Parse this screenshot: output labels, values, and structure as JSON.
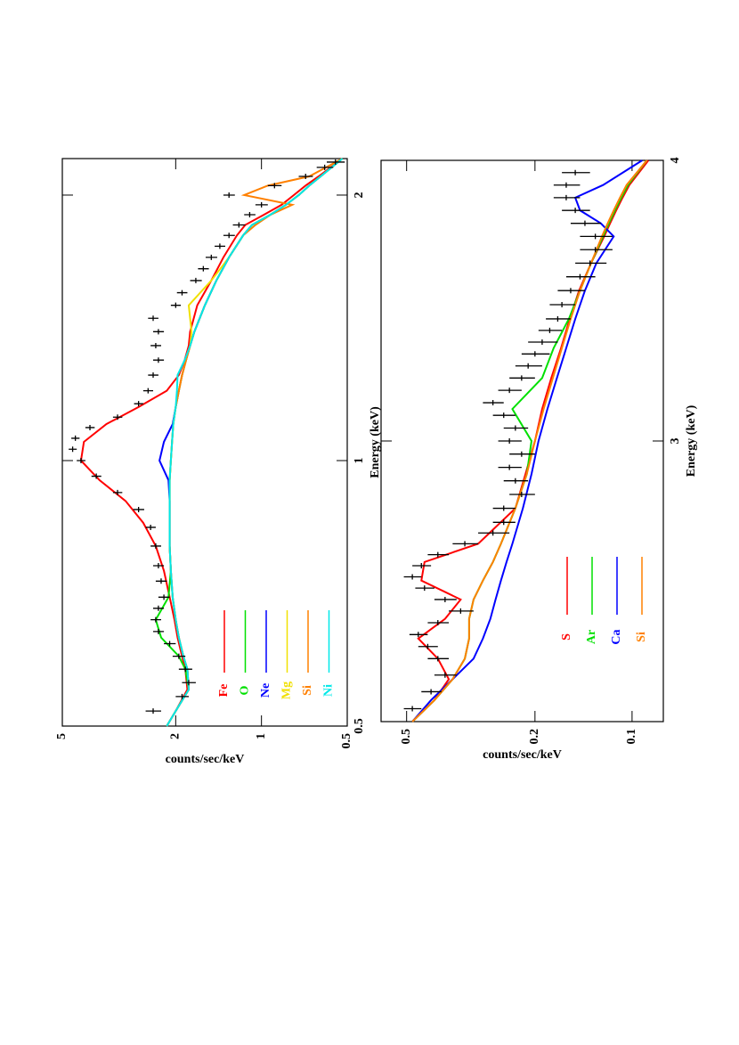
{
  "chart_data": [
    {
      "type": "line",
      "xlabel": "Energy (keV)",
      "ylabel": "counts/sec/keV",
      "xscale": "log",
      "yscale": "log",
      "xlim": [
        0.5,
        2.2
      ],
      "xticks": [
        0.5,
        1,
        2
      ],
      "ylim": [
        0.5,
        5
      ],
      "yticks": [
        0.5,
        1,
        2,
        5
      ],
      "x": [
        0.5,
        0.52,
        0.55,
        0.58,
        0.6,
        0.63,
        0.66,
        0.7,
        0.75,
        0.8,
        0.85,
        0.9,
        0.95,
        1.0,
        1.05,
        1.1,
        1.15,
        1.2,
        1.25,
        1.3,
        1.35,
        1.4,
        1.5,
        1.6,
        1.7,
        1.8,
        1.85,
        1.9,
        1.95,
        2.0,
        2.05,
        2.1,
        2.2
      ],
      "series": [
        {
          "name": "Fe",
          "color": "#ff0000",
          "values": [
            2.15,
            2.0,
            1.82,
            1.85,
            1.9,
            1.97,
            2.02,
            2.1,
            2.2,
            2.35,
            2.6,
            3.0,
            3.7,
            4.3,
            4.2,
            3.5,
            2.7,
            2.15,
            1.95,
            1.86,
            1.8,
            1.78,
            1.68,
            1.5,
            1.36,
            1.22,
            1.14,
            0.98,
            0.85,
            0.77,
            0.7,
            0.63,
            0.52
          ]
        },
        {
          "name": "O",
          "color": "#00e000",
          "values": [
            2.15,
            2.0,
            1.8,
            1.85,
            1.95,
            2.25,
            2.35,
            2.12,
            2.08,
            2.1,
            2.1,
            2.1,
            2.1,
            2.08,
            2.06,
            2.04,
            2.0,
            1.95,
            1.9,
            1.84,
            1.78,
            1.72,
            1.58,
            1.44,
            1.3,
            1.16,
            1.08,
            0.93,
            0.82,
            0.74,
            0.68,
            0.62,
            0.52
          ]
        },
        {
          "name": "Ne",
          "color": "#0000ff",
          "values": [
            2.15,
            2.0,
            1.8,
            1.82,
            1.88,
            1.95,
            2.0,
            2.05,
            2.08,
            2.1,
            2.1,
            2.1,
            2.12,
            2.28,
            2.2,
            2.05,
            2.0,
            1.95,
            1.9,
            1.84,
            1.78,
            1.72,
            1.58,
            1.44,
            1.3,
            1.16,
            1.08,
            0.93,
            0.82,
            0.74,
            0.68,
            0.62,
            0.52
          ]
        },
        {
          "name": "Mg",
          "color": "#f0e000",
          "values": [
            2.15,
            2.0,
            1.8,
            1.82,
            1.88,
            1.95,
            2.0,
            2.05,
            2.08,
            2.1,
            2.1,
            2.1,
            2.1,
            2.08,
            2.06,
            2.04,
            2.0,
            1.95,
            1.9,
            1.84,
            1.78,
            1.76,
            1.8,
            1.5,
            1.3,
            1.16,
            1.08,
            0.93,
            0.82,
            0.74,
            0.68,
            0.62,
            0.52
          ]
        },
        {
          "name": "Si",
          "color": "#ff8000",
          "values": [
            2.15,
            2.0,
            1.8,
            1.82,
            1.88,
            1.95,
            2.0,
            2.05,
            2.08,
            2.1,
            2.1,
            2.1,
            2.1,
            2.08,
            2.06,
            2.04,
            2.0,
            1.95,
            1.9,
            1.84,
            1.78,
            1.72,
            1.58,
            1.44,
            1.3,
            1.16,
            1.05,
            0.93,
            0.78,
            1.15,
            0.95,
            0.68,
            0.52
          ]
        },
        {
          "name": "Ni",
          "color": "#00e8e8",
          "values": [
            2.15,
            2.0,
            1.8,
            1.82,
            1.88,
            1.95,
            2.0,
            2.05,
            2.08,
            2.1,
            2.1,
            2.1,
            2.1,
            2.08,
            2.06,
            2.04,
            2.0,
            1.98,
            1.97,
            1.86,
            1.78,
            1.72,
            1.58,
            1.44,
            1.3,
            1.16,
            1.08,
            0.93,
            0.82,
            0.74,
            0.68,
            0.62,
            0.52
          ]
        }
      ],
      "points": {
        "color": "#000000",
        "x": [
          0.52,
          0.54,
          0.56,
          0.58,
          0.6,
          0.62,
          0.64,
          0.66,
          0.68,
          0.7,
          0.73,
          0.76,
          0.8,
          0.84,
          0.88,
          0.92,
          0.96,
          1.0,
          1.03,
          1.06,
          1.09,
          1.12,
          1.16,
          1.2,
          1.25,
          1.3,
          1.35,
          1.4,
          1.45,
          1.5,
          1.55,
          1.6,
          1.65,
          1.7,
          1.75,
          1.8,
          1.85,
          1.9,
          1.95,
          2.0,
          2.05,
          2.1,
          2.15,
          2.18
        ],
        "values": [
          2.4,
          1.9,
          1.8,
          1.85,
          1.95,
          2.1,
          2.3,
          2.35,
          2.3,
          2.2,
          2.25,
          2.3,
          2.35,
          2.45,
          2.7,
          3.2,
          3.8,
          4.3,
          4.6,
          4.5,
          4.0,
          3.2,
          2.7,
          2.5,
          2.4,
          2.3,
          2.35,
          2.3,
          2.4,
          2.0,
          1.9,
          1.7,
          1.6,
          1.5,
          1.4,
          1.3,
          1.2,
          1.1,
          1.0,
          1.3,
          0.9,
          0.7,
          0.6,
          0.55
        ],
        "yerr": [
          0.15,
          0.1,
          0.1,
          0.1,
          0.1,
          0.1,
          0.1,
          0.1,
          0.1,
          0.1,
          0.1,
          0.1,
          0.1,
          0.1,
          0.12,
          0.12,
          0.15,
          0.15,
          0.15,
          0.15,
          0.15,
          0.12,
          0.1,
          0.1,
          0.1,
          0.1,
          0.1,
          0.1,
          0.1,
          0.08,
          0.08,
          0.08,
          0.07,
          0.07,
          0.06,
          0.06,
          0.06,
          0.05,
          0.05,
          0.06,
          0.05,
          0.04,
          0.04,
          0.04
        ]
      }
    },
    {
      "type": "line",
      "xlabel": "Energy (keV)",
      "ylabel": "counts/sec/keV",
      "xscale": "log",
      "yscale": "log",
      "xlim": [
        2.25,
        4
      ],
      "xticks": [
        3,
        4
      ],
      "ylim": [
        0.08,
        0.6
      ],
      "yticks": [
        0.1,
        0.2,
        0.5
      ],
      "x": [
        2.25,
        2.3,
        2.35,
        2.4,
        2.45,
        2.5,
        2.55,
        2.6,
        2.65,
        2.7,
        2.8,
        2.9,
        3.0,
        3.1,
        3.2,
        3.3,
        3.4,
        3.5,
        3.6,
        3.7,
        3.75,
        3.8,
        3.85,
        3.9,
        4.0
      ],
      "series": [
        {
          "name": "S",
          "color": "#ff0000",
          "values": [
            0.48,
            0.41,
            0.37,
            0.4,
            0.46,
            0.38,
            0.34,
            0.45,
            0.44,
            0.3,
            0.23,
            0.214,
            0.2,
            0.19,
            0.178,
            0.166,
            0.156,
            0.146,
            0.134,
            0.122,
            0.117,
            0.112,
            0.107,
            0.102,
            0.089
          ]
        },
        {
          "name": "Ar",
          "color": "#00e000",
          "values": [
            0.48,
            0.41,
            0.36,
            0.33,
            0.32,
            0.32,
            0.31,
            0.29,
            0.27,
            0.255,
            0.23,
            0.212,
            0.205,
            0.235,
            0.19,
            0.175,
            0.157,
            0.145,
            0.134,
            0.123,
            0.118,
            0.113,
            0.108,
            0.103,
            0.09
          ]
        },
        {
          "name": "Ca",
          "color": "#0000ff",
          "values": [
            0.48,
            0.42,
            0.36,
            0.31,
            0.29,
            0.275,
            0.265,
            0.255,
            0.245,
            0.235,
            0.218,
            0.205,
            0.195,
            0.183,
            0.171,
            0.16,
            0.15,
            0.14,
            0.129,
            0.114,
            0.125,
            0.145,
            0.15,
            0.123,
            0.093
          ]
        },
        {
          "name": "Si",
          "color": "#ff8000",
          "values": [
            0.48,
            0.41,
            0.36,
            0.33,
            0.32,
            0.32,
            0.31,
            0.29,
            0.27,
            0.255,
            0.23,
            0.212,
            0.2,
            0.188,
            0.176,
            0.165,
            0.155,
            0.145,
            0.134,
            0.124,
            0.119,
            0.114,
            0.109,
            0.104,
            0.09
          ]
        }
      ],
      "points": {
        "color": "#000000",
        "x": [
          2.28,
          2.32,
          2.36,
          2.4,
          2.43,
          2.46,
          2.49,
          2.52,
          2.55,
          2.58,
          2.61,
          2.64,
          2.67,
          2.7,
          2.73,
          2.76,
          2.8,
          2.84,
          2.88,
          2.92,
          2.96,
          3.0,
          3.04,
          3.08,
          3.12,
          3.16,
          3.2,
          3.24,
          3.28,
          3.32,
          3.36,
          3.4,
          3.45,
          3.5,
          3.55,
          3.6,
          3.65,
          3.7,
          3.75,
          3.8,
          3.85,
          3.9,
          3.95
        ],
        "values": [
          0.48,
          0.42,
          0.38,
          0.4,
          0.43,
          0.46,
          0.4,
          0.34,
          0.38,
          0.44,
          0.48,
          0.45,
          0.4,
          0.33,
          0.27,
          0.25,
          0.25,
          0.22,
          0.23,
          0.24,
          0.22,
          0.24,
          0.23,
          0.25,
          0.27,
          0.24,
          0.22,
          0.21,
          0.2,
          0.19,
          0.18,
          0.17,
          0.165,
          0.155,
          0.145,
          0.135,
          0.13,
          0.13,
          0.14,
          0.15,
          0.16,
          0.16,
          0.15
        ],
        "yerr": [
          0.03,
          0.03,
          0.03,
          0.03,
          0.03,
          0.03,
          0.03,
          0.03,
          0.03,
          0.03,
          0.03,
          0.03,
          0.03,
          0.03,
          0.03,
          0.02,
          0.02,
          0.02,
          0.02,
          0.02,
          0.02,
          0.02,
          0.02,
          0.02,
          0.02,
          0.02,
          0.02,
          0.02,
          0.02,
          0.02,
          0.015,
          0.015,
          0.015,
          0.015,
          0.015,
          0.015,
          0.015,
          0.015,
          0.015,
          0.015,
          0.015,
          0.015,
          0.015
        ]
      }
    }
  ]
}
